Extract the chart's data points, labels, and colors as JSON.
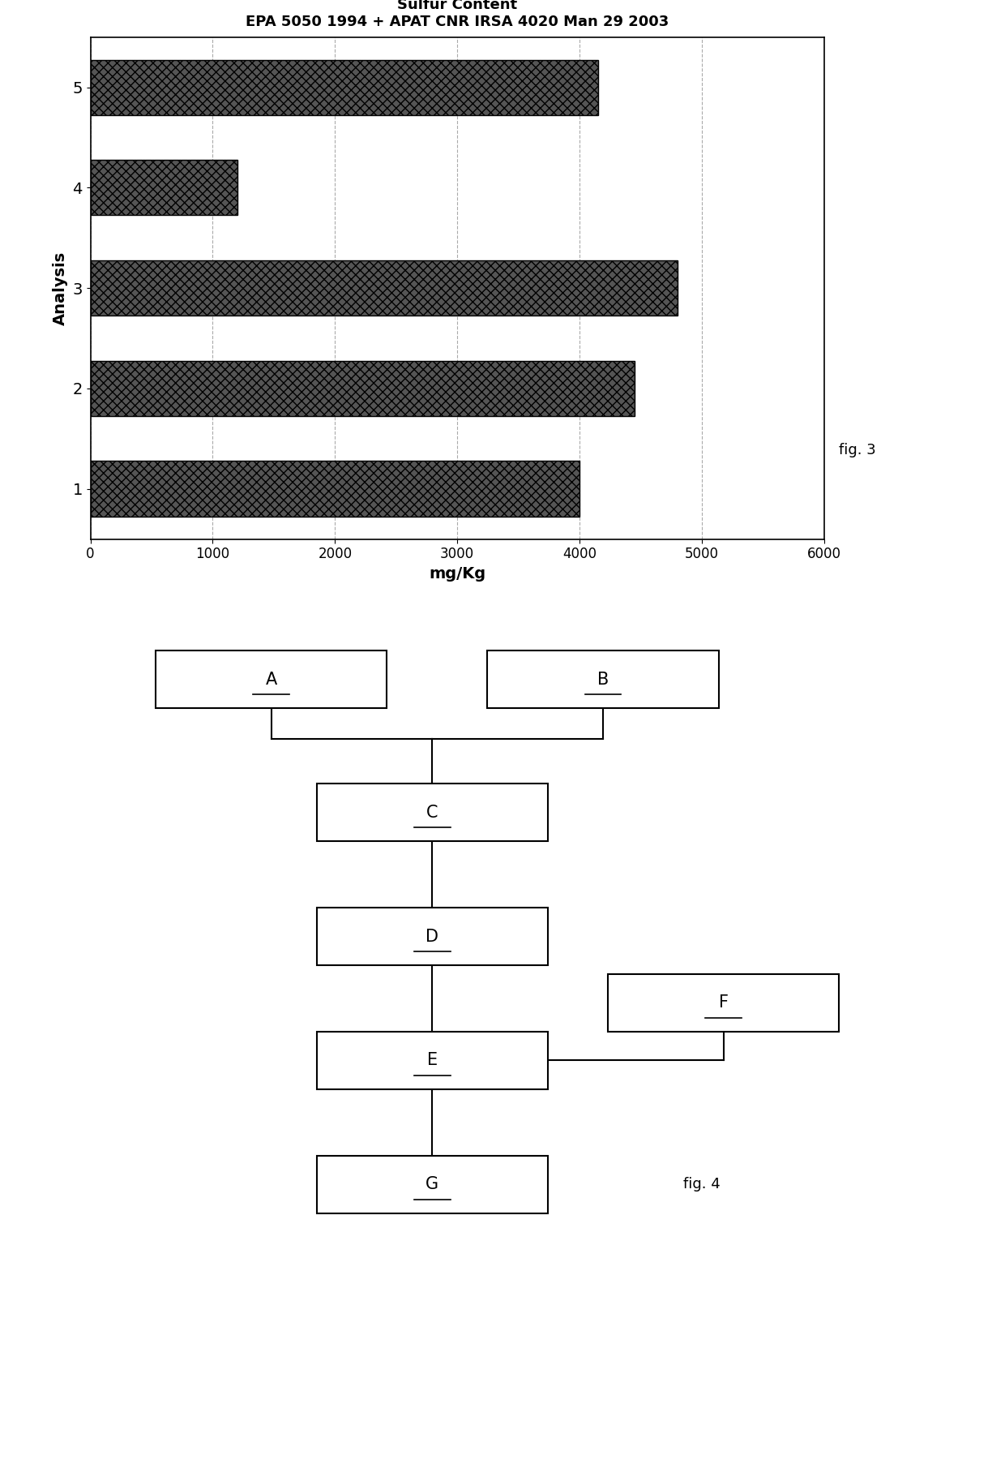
{
  "chart_title_line1": "Sulfur Content",
  "chart_title_line2": "EPA 5050 1994 + APAT CNR IRSA 4020 Man 29 2003",
  "bar_values": [
    4000,
    4450,
    4800,
    1200,
    4150
  ],
  "bar_labels": [
    "1",
    "2",
    "3",
    "4",
    "5"
  ],
  "xlabel": "mg/Kg",
  "ylabel": "Analysis",
  "xlim": [
    0,
    6000
  ],
  "xticks": [
    0,
    1000,
    2000,
    3000,
    4000,
    5000,
    6000
  ],
  "bar_color": "#555555",
  "bar_hatch": "xxx",
  "fig3_label": "fig. 3",
  "fig4_label": "fig. 4",
  "bg_color": "#ffffff",
  "grid_color": "#aaaaaa",
  "node_labels": [
    "A",
    "B",
    "C",
    "D",
    "E",
    "G",
    "F"
  ]
}
